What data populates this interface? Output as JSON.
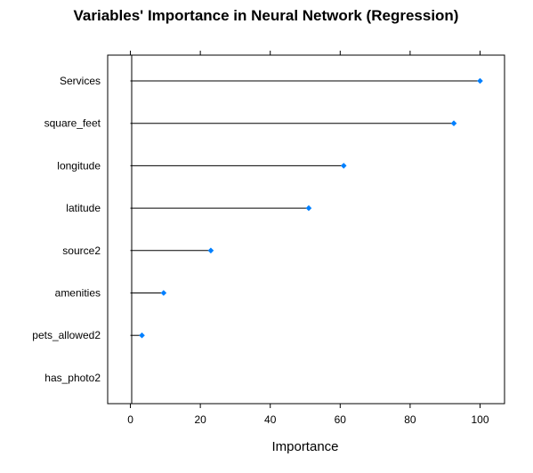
{
  "chart_data": {
    "type": "dot",
    "title": "Variables' Importance in Neural Network (Regression)",
    "xlabel": "Importance",
    "ylabel": "",
    "xlim": [
      -6.5,
      107
    ],
    "xticks": [
      "0",
      "20",
      "40",
      "60",
      "80",
      "100"
    ],
    "categories": [
      "Services",
      "square_feet",
      "longitude",
      "latitude",
      "source2",
      "amenities",
      "pets_allowed2",
      "has_photo2"
    ],
    "values": [
      100,
      92.5,
      61,
      51,
      23,
      9.5,
      3.3,
      0
    ],
    "marker_color": "#0080ff",
    "line_color": "#000000",
    "grid": false
  }
}
